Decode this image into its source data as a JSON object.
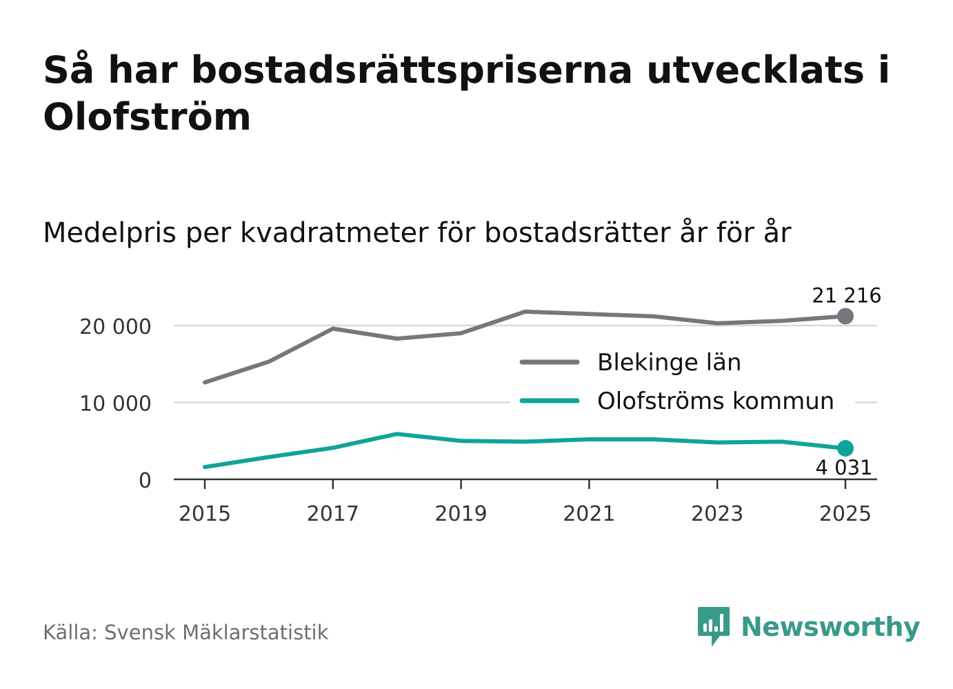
{
  "header": {
    "title": "Så har bostadsrättspriserna utvecklats i Olofström",
    "subtitle": "Medelpris per kvadratmeter för bostadsrätter år för år"
  },
  "footer": {
    "source": "Källa: Svensk Mäklarstatistik",
    "brand": "Newsworthy",
    "brand_icon": "bar-chart-speech-bubble-icon"
  },
  "colors": {
    "blekinge": "#76767c",
    "olofstrom": "#11a39a",
    "grid": "#d9d9d9",
    "axis": "#333333",
    "brand": "#3a9a8a"
  },
  "chart_data": {
    "type": "line",
    "title": "Så har bostadsrättspriserna utvecklats i Olofström",
    "subtitle": "Medelpris per kvadratmeter för bostadsrätter år för år",
    "xlabel": "",
    "ylabel": "",
    "x": [
      2015,
      2016,
      2017,
      2018,
      2019,
      2020,
      2021,
      2022,
      2023,
      2024,
      2025
    ],
    "xticks": [
      2015,
      2017,
      2019,
      2021,
      2023,
      2025
    ],
    "xtick_labels": [
      "2015",
      "2017",
      "2019",
      "2021",
      "2023",
      "2025"
    ],
    "yticks": [
      0,
      10000,
      20000
    ],
    "ytick_labels": [
      "0",
      "10 000",
      "20 000"
    ],
    "ylim": [
      0,
      22500
    ],
    "grid": true,
    "legend_position": "center-right",
    "series": [
      {
        "name": "Blekinge län",
        "color": "#76767c",
        "values": [
          12600,
          15300,
          19600,
          18300,
          19000,
          21800,
          21500,
          21200,
          20300,
          20600,
          21216
        ],
        "end_label": "21 216"
      },
      {
        "name": "Olofströms kommun",
        "color": "#11a39a",
        "values": [
          1600,
          2900,
          4100,
          5900,
          5000,
          4900,
          5200,
          5200,
          4800,
          4900,
          4031
        ],
        "end_label": "4 031"
      }
    ]
  }
}
